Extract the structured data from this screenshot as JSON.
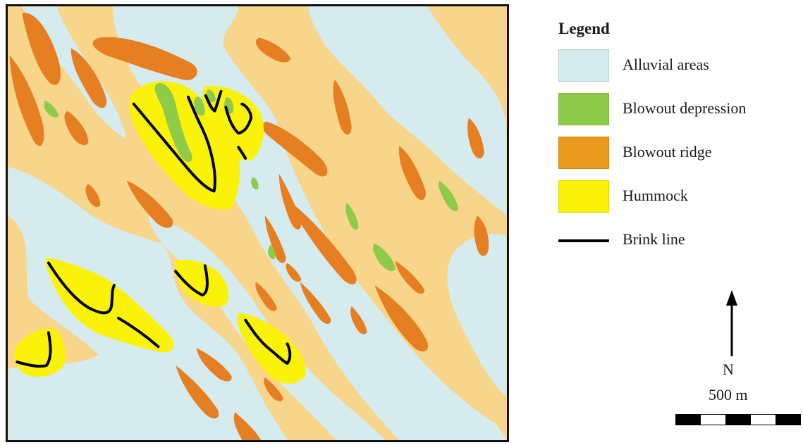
{
  "legend": {
    "title": "Legend",
    "items": [
      {
        "label": "Alluvial areas",
        "color": "#d5ebee",
        "symbol": "fill"
      },
      {
        "label": "Blowout depression",
        "color": "#8fca4a",
        "symbol": "fill"
      },
      {
        "label": "Blowout ridge",
        "color": "#e67e22",
        "symbol": "fill"
      },
      {
        "label": "Hummock",
        "color": "#fbf20a",
        "symbol": "fill"
      },
      {
        "label": "Brink line",
        "color": "#000000",
        "symbol": "line"
      }
    ]
  },
  "map": {
    "background_color": "#f7d58a",
    "north_label": "N",
    "scale_label": "500 m",
    "scale_segments": [
      "black",
      "white",
      "black",
      "white",
      "black"
    ]
  }
}
